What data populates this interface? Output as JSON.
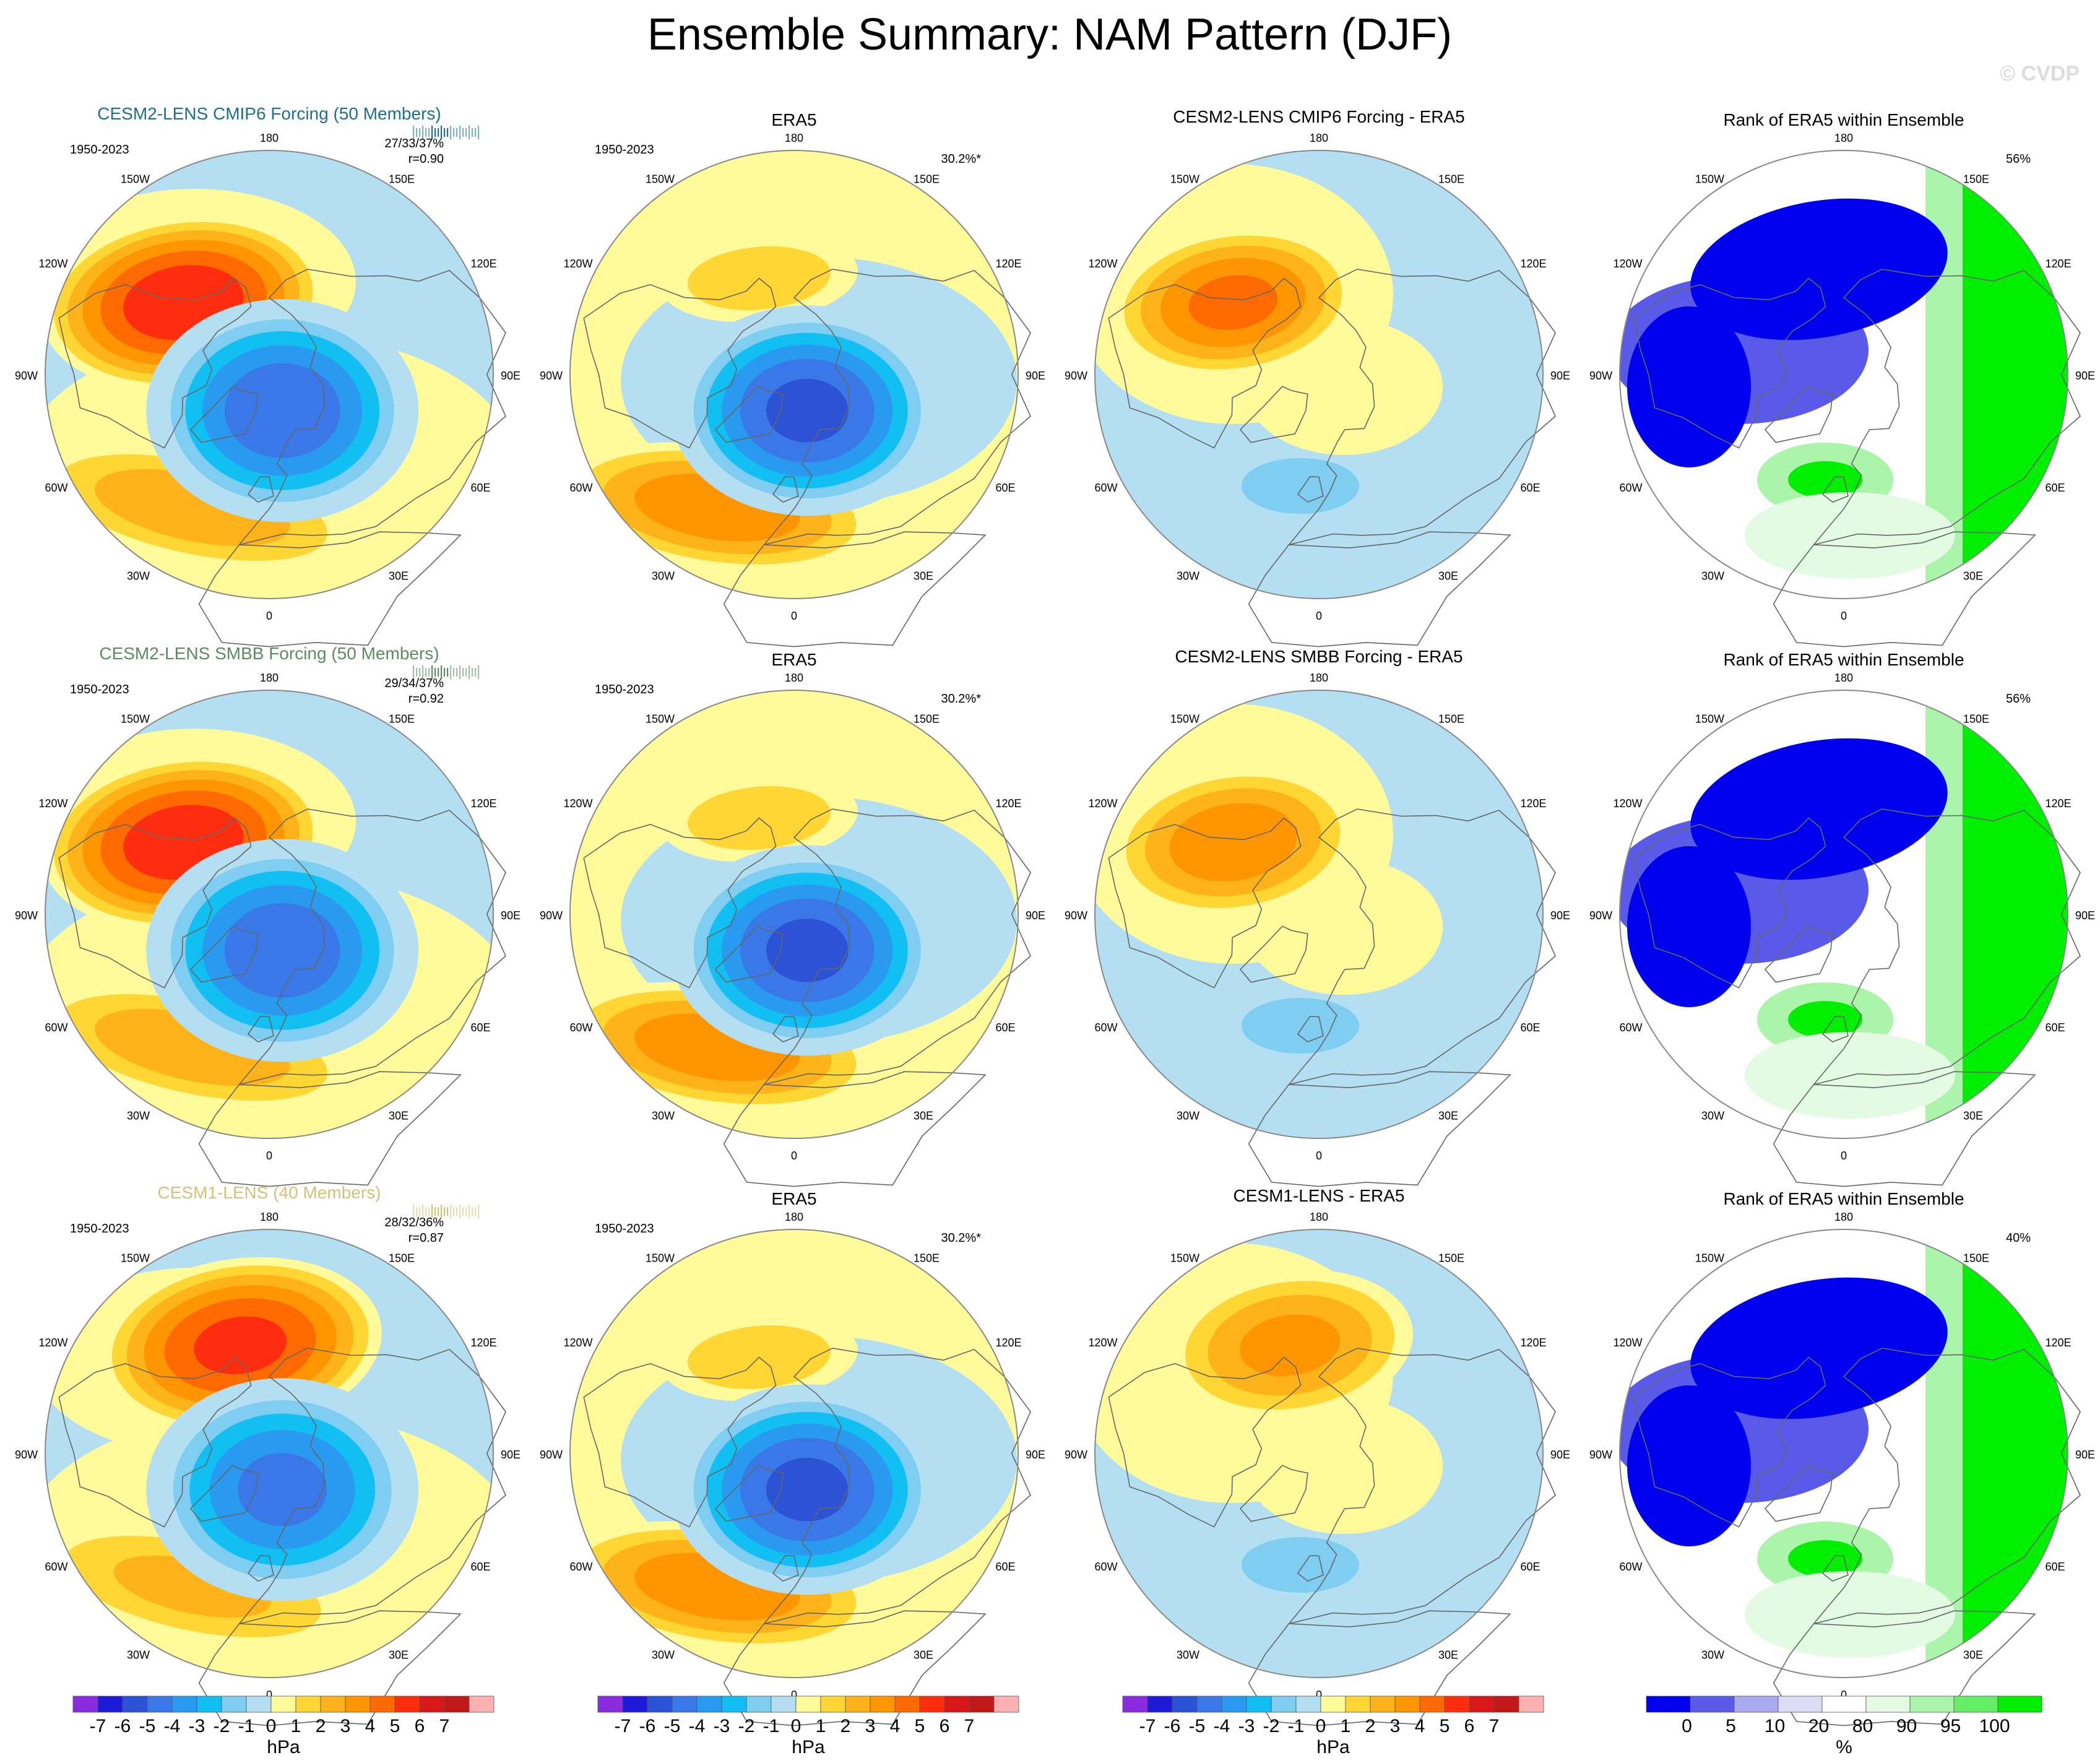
{
  "title": "Ensemble Summary: NAM Pattern (DJF)",
  "watermark": "© CVDP",
  "period": "1950-2023",
  "colors": {
    "cesm2_cmip6": "#1f6e8c",
    "cesm2_smbb": "#5f8a62",
    "cesm1": "#d4c27a",
    "land": "#666666",
    "border": "#888888"
  },
  "chart_data": {
    "type": "heatmap",
    "projection": "north-polar-stereographic",
    "lon_labels": {
      "top": "180",
      "bottom": "0",
      "left": "90W",
      "right": "90E",
      "upper_left_outer": "120W",
      "upper_left_inner": "150W",
      "upper_right_inner": "150E",
      "upper_right_outer": "120E",
      "lower_left_outer": "60W",
      "lower_left_inner": "30W",
      "lower_right_inner": "30E",
      "lower_right_outer": "60E"
    },
    "rows": [
      {
        "model": {
          "title": "CESM2-LENS CMIP6 Forcing (50 Members)",
          "pct": "27/33/37%",
          "r": "r=0.90",
          "color_key": "cesm2_cmip6",
          "high_center": [
            -130,
            55
          ],
          "high_peak": 5.5,
          "low_center": [
            20,
            78
          ],
          "low_peak": -5.5,
          "atl_center": [
            -30,
            42
          ],
          "atl_peak": 2.5
        },
        "obs": {
          "title": "ERA5",
          "pct": "30.2%*",
          "high_peak": 1.5,
          "low_peak": -6,
          "atl_peak": 3.5
        },
        "diff": {
          "title": "CESM2-LENS CMIP6 Forcing - ERA5",
          "high_peak": 4,
          "atl_peak": -2
        },
        "rank": {
          "title": "Rank of ERA5 within Ensemble",
          "pct": "56%"
        }
      },
      {
        "model": {
          "title": "CESM2-LENS SMBB Forcing (50 Members)",
          "pct": "29/34/37%",
          "r": "r=0.92",
          "color_key": "cesm2_smbb",
          "high_center": [
            -130,
            55
          ],
          "high_peak": 5.5,
          "low_center": [
            20,
            78
          ],
          "low_peak": -5.5,
          "atl_center": [
            -30,
            42
          ],
          "atl_peak": 2.5
        },
        "obs": {
          "title": "ERA5",
          "pct": "30.2%*",
          "high_peak": 1.5,
          "low_peak": -6,
          "atl_peak": 3.5
        },
        "diff": {
          "title": "CESM2-LENS SMBB Forcing - ERA5",
          "high_peak": 3.5,
          "atl_peak": -2
        },
        "rank": {
          "title": "Rank of ERA5 within Ensemble",
          "pct": "56%"
        }
      },
      {
        "model": {
          "title": "CESM1-LENS (40 Members)",
          "pct": "28/32/36%",
          "r": "r=0.87",
          "color_key": "cesm1",
          "high_center": [
            -165,
            55
          ],
          "high_peak": 5,
          "low_center": [
            20,
            78
          ],
          "low_peak": -5,
          "atl_center": [
            -30,
            42
          ],
          "atl_peak": 2
        },
        "obs": {
          "title": "ERA5",
          "pct": "30.2%*",
          "high_peak": 1.5,
          "low_peak": -6,
          "atl_peak": 3.5
        },
        "diff": {
          "title": "CESM1-LENS - ERA5",
          "high_peak": 3,
          "atl_peak": -2
        },
        "rank": {
          "title": "Rank of ERA5 within Ensemble",
          "pct": "40%"
        }
      }
    ],
    "colorbar_hpa": {
      "unit": "hPa",
      "labels": [
        "-7",
        "-6",
        "-5",
        "-4",
        "-3",
        "-2",
        "-1",
        "0",
        "1",
        "2",
        "3",
        "4",
        "5",
        "6",
        "7"
      ],
      "colors": [
        "#8a2be2",
        "#1c1cd8",
        "#2c52d6",
        "#3a78e8",
        "#2a9af0",
        "#12bff2",
        "#7fcdf0",
        "#b4dff2",
        "#fffa9a",
        "#ffd633",
        "#ffb31a",
        "#ff9500",
        "#ff6a00",
        "#ff2d10",
        "#d81818",
        "#c21818",
        "#ffb0b0"
      ]
    },
    "colorbar_rank": {
      "unit": "%",
      "labels": [
        "0",
        "5",
        "10",
        "20",
        "80",
        "90",
        "95",
        "100"
      ],
      "colors": [
        "#0000ee",
        "#5a5ae8",
        "#aaaaf0",
        "#dcdcf6",
        "#ffffff",
        "#e2fbe2",
        "#aaf5aa",
        "#66ee66",
        "#00ee00"
      ]
    }
  }
}
